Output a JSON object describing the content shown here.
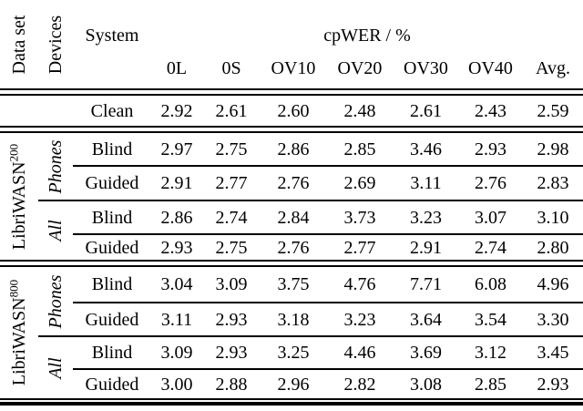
{
  "table": {
    "header": {
      "dataset_label": "Data set",
      "devices_label": "Devices",
      "system_label": "System",
      "group_label": "cpWER / %",
      "columns": [
        "0L",
        "0S",
        "OV10",
        "OV20",
        "OV30",
        "OV40",
        "Avg."
      ]
    },
    "clean_row": {
      "system": "Clean",
      "values": [
        "2.92",
        "2.61",
        "2.60",
        "2.48",
        "2.61",
        "2.43",
        "2.59"
      ]
    },
    "sections": [
      {
        "dataset": "LibriWASN",
        "dataset_sup": "200",
        "groups": [
          {
            "devices": "Phones",
            "rows": [
              {
                "system": "Blind",
                "values": [
                  "2.97",
                  "2.75",
                  "2.86",
                  "2.85",
                  "3.46",
                  "2.93",
                  "2.98"
                ]
              },
              {
                "system": "Guided",
                "values": [
                  "2.91",
                  "2.77",
                  "2.76",
                  "2.69",
                  "3.11",
                  "2.76",
                  "2.83"
                ]
              }
            ]
          },
          {
            "devices": "All",
            "rows": [
              {
                "system": "Blind",
                "values": [
                  "2.86",
                  "2.74",
                  "2.84",
                  "3.73",
                  "3.23",
                  "3.07",
                  "3.10"
                ]
              },
              {
                "system": "Guided",
                "values": [
                  "2.93",
                  "2.75",
                  "2.76",
                  "2.77",
                  "2.91",
                  "2.74",
                  "2.80"
                ]
              }
            ]
          }
        ]
      },
      {
        "dataset": "LibriWASN",
        "dataset_sup": "800",
        "groups": [
          {
            "devices": "Phones",
            "rows": [
              {
                "system": "Blind",
                "values": [
                  "3.04",
                  "3.09",
                  "3.75",
                  "4.76",
                  "7.71",
                  "6.08",
                  "4.96"
                ]
              },
              {
                "system": "Guided",
                "values": [
                  "3.11",
                  "2.93",
                  "3.18",
                  "3.23",
                  "3.64",
                  "3.54",
                  "3.30"
                ]
              }
            ]
          },
          {
            "devices": "All",
            "rows": [
              {
                "system": "Blind",
                "values": [
                  "3.09",
                  "2.93",
                  "3.25",
                  "4.46",
                  "3.69",
                  "3.12",
                  "3.45"
                ]
              },
              {
                "system": "Guided",
                "values": [
                  "3.00",
                  "2.88",
                  "2.96",
                  "2.82",
                  "3.08",
                  "2.85",
                  "2.93"
                ]
              }
            ]
          }
        ]
      }
    ]
  }
}
